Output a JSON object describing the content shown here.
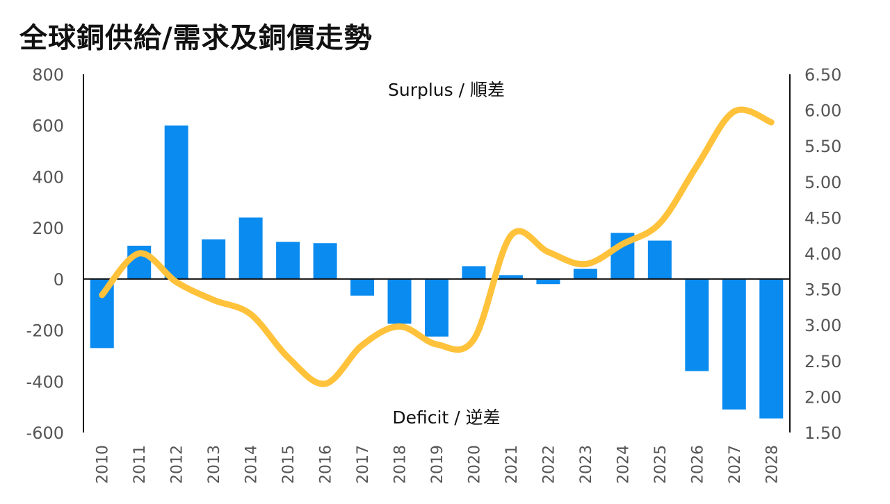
{
  "title": "全球銅供給/需求及銅價走勢",
  "chart_data": {
    "type": "bar+line",
    "categories": [
      "2010",
      "2011",
      "2012",
      "2013",
      "2014",
      "2015",
      "2016",
      "2017",
      "2018",
      "2019",
      "2020",
      "2021",
      "2022",
      "2023",
      "2024",
      "2025",
      "2026",
      "2027",
      "2028"
    ],
    "series": [
      {
        "type": "bar",
        "axis": "left",
        "color": "#0a8bf0",
        "values": [
          -270,
          130,
          600,
          155,
          240,
          145,
          140,
          -65,
          -175,
          -225,
          50,
          15,
          -20,
          40,
          180,
          150,
          -360,
          -510,
          -545
        ]
      },
      {
        "type": "line",
        "axis": "right",
        "color": "#ffc23a",
        "values": [
          3.42,
          4.0,
          3.6,
          3.35,
          3.15,
          2.55,
          2.18,
          2.72,
          2.98,
          2.73,
          2.8,
          4.25,
          4.02,
          3.85,
          4.13,
          4.42,
          5.22,
          5.98,
          5.83
        ]
      }
    ],
    "y_left": {
      "min": -600,
      "max": 800,
      "ticks": [
        "800",
        "600",
        "400",
        "200",
        "0",
        "-200",
        "-400",
        "-600"
      ]
    },
    "y_right": {
      "min": 1.5,
      "max": 6.5,
      "ticks": [
        "6.50",
        "6.00",
        "5.50",
        "5.00",
        "4.50",
        "4.00",
        "3.50",
        "3.00",
        "2.50",
        "2.00",
        "1.50"
      ]
    },
    "annotations": {
      "top": "Surplus / 順差",
      "bottom": "Deficit / 逆差"
    },
    "grid": false
  }
}
